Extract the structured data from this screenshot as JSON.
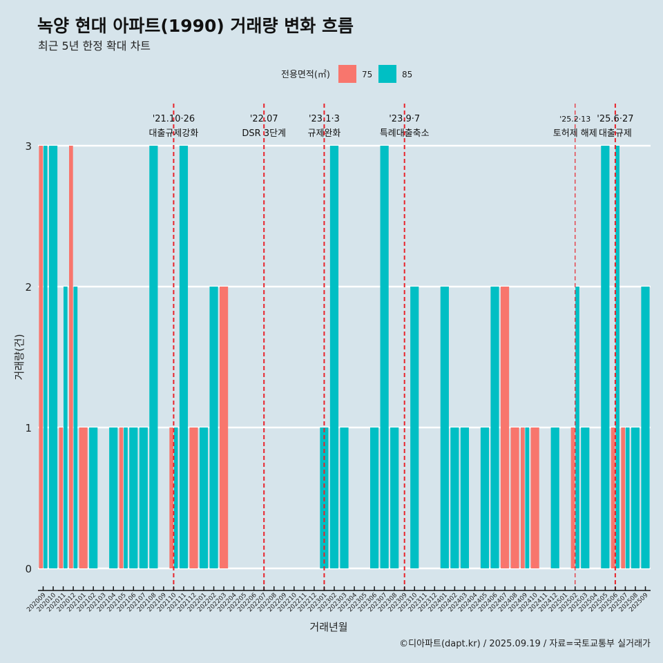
{
  "title": "녹양 현대 아파트(1990) 거래량 변화 흐름",
  "subtitle": "최근 5년 한정 확대 차트",
  "caption": "©디아파트(dapt.kr) / 2025.09.19 / 자료=국토교통부 실거래가",
  "chart_data": {
    "type": "bar",
    "xlabel": "거래년월",
    "ylabel": "거래량(건)",
    "ylim": [
      0,
      3
    ],
    "yticks": [
      "0",
      "1",
      "2",
      "3"
    ],
    "grid": true,
    "legend": {
      "title": "전용면적(㎡)",
      "position": "top"
    },
    "categories": [
      "202009",
      "202010",
      "202011",
      "202012",
      "202101",
      "202102",
      "202103",
      "202104",
      "202105",
      "202106",
      "202107",
      "202108",
      "202109",
      "202110",
      "202111",
      "202112",
      "202201",
      "202202",
      "202203",
      "202204",
      "202205",
      "202206",
      "202207",
      "202208",
      "202209",
      "202210",
      "202211",
      "202212",
      "202301",
      "202302",
      "202303",
      "202304",
      "202305",
      "202306",
      "202307",
      "202308",
      "202309",
      "202310",
      "202311",
      "202312",
      "202401",
      "202402",
      "202403",
      "202404",
      "202405",
      "202406",
      "202407",
      "202408",
      "202409",
      "202410",
      "202411",
      "202412",
      "202501",
      "202502",
      "202503",
      "202504",
      "202505",
      "202506",
      "202507",
      "202508",
      "202509"
    ],
    "series": [
      {
        "name": "75",
        "color": "#f8766d",
        "values": [
          3,
          0,
          1,
          3,
          1,
          0,
          0,
          0,
          1,
          0,
          0,
          0,
          0,
          1,
          0,
          1,
          0,
          0,
          2,
          0,
          0,
          0,
          0,
          0,
          0,
          0,
          0,
          0,
          0,
          0,
          0,
          0,
          0,
          0,
          0,
          0,
          0,
          0,
          0,
          0,
          0,
          0,
          0,
          0,
          0,
          0,
          2,
          1,
          1,
          1,
          0,
          0,
          0,
          1,
          0,
          0,
          0,
          1,
          1,
          0,
          0
        ]
      },
      {
        "name": "85",
        "color": "#00bfc4",
        "values": [
          3,
          3,
          2,
          2,
          0,
          1,
          0,
          1,
          1,
          1,
          1,
          3,
          0,
          1,
          3,
          0,
          1,
          2,
          0,
          0,
          0,
          0,
          0,
          0,
          0,
          0,
          0,
          0,
          1,
          3,
          1,
          0,
          0,
          1,
          3,
          1,
          0,
          2,
          0,
          0,
          2,
          1,
          1,
          0,
          1,
          2,
          0,
          0,
          1,
          0,
          0,
          1,
          0,
          2,
          1,
          0,
          3,
          3,
          1,
          1,
          2
        ]
      }
    ],
    "annotations": [
      {
        "month": "202110",
        "date": "'21.10·26",
        "label": "대출규제강화"
      },
      {
        "month": "202207",
        "date": "'22.07",
        "label": "DSR 3단계"
      },
      {
        "month": "202301",
        "date": "'23.1·3",
        "label": "규제완화"
      },
      {
        "month": "202309",
        "date": "'23.9·7",
        "label": "특례대출축소"
      },
      {
        "month": "202502",
        "date": "'25.2·13",
        "label": "토허제 해제",
        "small": true
      },
      {
        "month": "202506",
        "date": "'25.6·27",
        "label": "대출규제"
      }
    ]
  }
}
